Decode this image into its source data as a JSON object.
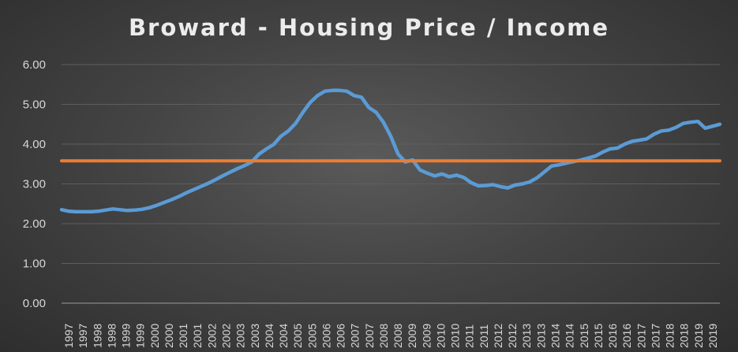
{
  "chart_data": {
    "type": "line",
    "title": "Broward - Housing Price / Income",
    "xlabel": "",
    "ylabel": "",
    "ylim": [
      0,
      6
    ],
    "y_ticks": [
      "0.00",
      "1.00",
      "2.00",
      "3.00",
      "4.00",
      "5.00",
      "6.00"
    ],
    "x_tick_labels": [
      "1997",
      "1997",
      "1998",
      "1998",
      "1999",
      "1999",
      "2000",
      "2000",
      "2001",
      "2001",
      "2002",
      "2002",
      "2003",
      "2003",
      "2004",
      "2004",
      "2005",
      "2005",
      "2006",
      "2006",
      "2007",
      "2007",
      "2008",
      "2008",
      "2009",
      "2009",
      "2010",
      "2010",
      "2011",
      "2011",
      "2012",
      "2012",
      "2013",
      "2013",
      "2014",
      "2014",
      "2015",
      "2015",
      "2016",
      "2016",
      "2017",
      "2017",
      "2018",
      "2018",
      "2019",
      "2019"
    ],
    "grid": "horizontal",
    "series": [
      {
        "color": "#5b9bd5",
        "x": [
          1997.0,
          1997.25,
          1997.5,
          1997.75,
          1998.0,
          1998.25,
          1998.5,
          1998.75,
          1999.0,
          1999.25,
          1999.5,
          1999.75,
          2000.0,
          2000.25,
          2000.5,
          2000.75,
          2001.0,
          2001.25,
          2001.5,
          2001.75,
          2002.0,
          2002.25,
          2002.5,
          2002.75,
          2003.0,
          2003.25,
          2003.5,
          2003.75,
          2004.0,
          2004.25,
          2004.5,
          2004.75,
          2005.0,
          2005.25,
          2005.5,
          2005.75,
          2006.0,
          2006.25,
          2006.5,
          2006.75,
          2007.0,
          2007.25,
          2007.5,
          2007.75,
          2008.0,
          2008.25,
          2008.5,
          2008.75,
          2009.0,
          2009.25,
          2009.5,
          2009.75,
          2010.0,
          2010.25,
          2010.5,
          2010.75,
          2011.0,
          2011.25,
          2011.5,
          2011.75,
          2012.0,
          2012.25,
          2012.5,
          2012.75,
          2013.0,
          2013.25,
          2013.5,
          2013.75,
          2014.0,
          2014.25,
          2014.5,
          2014.75,
          2015.0,
          2015.25,
          2015.5,
          2015.75,
          2016.0,
          2016.25,
          2016.5,
          2016.75,
          2017.0,
          2017.25,
          2017.5,
          2017.75,
          2018.0,
          2018.25,
          2018.5,
          2018.75,
          2019.0,
          2019.25,
          2019.5
        ],
        "y": [
          2.35,
          2.31,
          2.3,
          2.3,
          2.3,
          2.31,
          2.34,
          2.37,
          2.35,
          2.33,
          2.34,
          2.36,
          2.4,
          2.46,
          2.53,
          2.6,
          2.68,
          2.77,
          2.85,
          2.93,
          3.01,
          3.1,
          3.2,
          3.29,
          3.38,
          3.46,
          3.55,
          3.75,
          3.88,
          3.99,
          4.2,
          4.33,
          4.52,
          4.8,
          5.05,
          5.22,
          5.33,
          5.35,
          5.35,
          5.33,
          5.22,
          5.18,
          4.92,
          4.8,
          4.55,
          4.2,
          3.75,
          3.55,
          3.6,
          3.35,
          3.27,
          3.2,
          3.25,
          3.18,
          3.22,
          3.16,
          3.03,
          2.95,
          2.96,
          2.98,
          2.93,
          2.9,
          2.97,
          3.0,
          3.05,
          3.15,
          3.3,
          3.45,
          3.48,
          3.52,
          3.56,
          3.6,
          3.65,
          3.7,
          3.8,
          3.88,
          3.9,
          4.0,
          4.07,
          4.1,
          4.13,
          4.25,
          4.33,
          4.35,
          4.42,
          4.52,
          4.55,
          4.57,
          4.4,
          4.45,
          4.5
        ]
      },
      {
        "color": "#ed7d31",
        "x": [
          1997.0,
          2019.5
        ],
        "y": [
          3.58,
          3.58
        ]
      }
    ]
  }
}
